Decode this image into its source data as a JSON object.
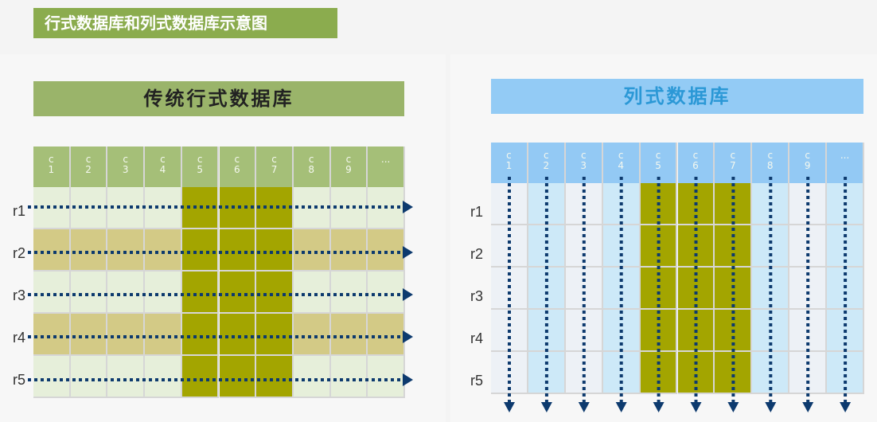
{
  "title": "行式数据库和列式数据库示意图",
  "row_store": {
    "title": "传统行式数据库",
    "columns": [
      "c 1",
      "c 2",
      "c 3",
      "c 4",
      "c 5",
      "c 6",
      "c 7",
      "c 8",
      "c 9",
      "..."
    ],
    "rows": [
      "r1",
      "r2",
      "r3",
      "r4",
      "r5"
    ],
    "highlighted_columns": [
      5,
      6,
      7
    ],
    "scan_direction": "row"
  },
  "column_store": {
    "title": "列式数据库",
    "columns": [
      "c 1",
      "c 2",
      "c 3",
      "c 4",
      "c 5",
      "c 6",
      "c 7",
      "c 8",
      "c 9",
      "..."
    ],
    "rows": [
      "r1",
      "r2",
      "r3",
      "r4",
      "r5"
    ],
    "highlighted_columns": [
      5,
      6,
      7
    ],
    "scan_direction": "column"
  },
  "colors": {
    "title_bg": "#8bac4e",
    "row_bar": "#9ab46a",
    "row_header": "#a5bf78",
    "row_light": "#e6efda",
    "row_tan": "#d3ca86",
    "highlight": "#a3a500",
    "col_bar": "#93cbf5",
    "col_title_text": "#2b98d6",
    "col_header": "#93c9f4",
    "col_light": "#edf1f6",
    "col_blue": "#cde9f8",
    "arrow": "#0d3a6e"
  }
}
